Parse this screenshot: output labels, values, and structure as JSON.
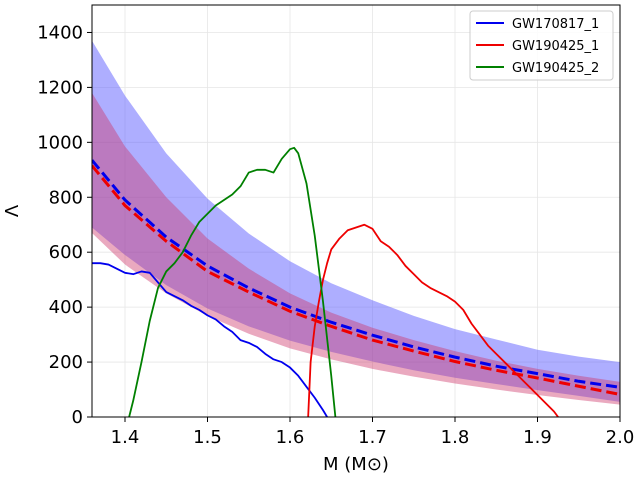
{
  "chart_data": {
    "type": "line",
    "title": "",
    "xlabel": "M (M⊙)",
    "ylabel": "Λ",
    "xlim": [
      1.36,
      2.0
    ],
    "ylim": [
      0,
      1500
    ],
    "xticks": [
      1.4,
      1.5,
      1.6,
      1.7,
      1.8,
      1.9,
      2.0
    ],
    "xtick_labels": [
      "1.4",
      "1.5",
      "1.6",
      "1.7",
      "1.8",
      "1.9",
      "2.0"
    ],
    "yticks": [
      0,
      200,
      400,
      600,
      800,
      1000,
      1200,
      1400
    ],
    "ytick_labels": [
      "0",
      "200",
      "400",
      "600",
      "800",
      "1000",
      "1200",
      "1400"
    ],
    "grid": true,
    "legend_position": "top-right",
    "colors": {
      "blue": "#0000ee",
      "red": "#ee0000",
      "green": "#008000",
      "blue_band": "#5555ff",
      "red_band": "#cc3366"
    },
    "bands": [
      {
        "name": "blue-band",
        "x": [
          1.36,
          1.4,
          1.45,
          1.5,
          1.55,
          1.6,
          1.65,
          1.7,
          1.75,
          1.8,
          1.85,
          1.9,
          1.95,
          2.0
        ],
        "upper": [
          1370,
          1170,
          960,
          795,
          668,
          567,
          487,
          425,
          368,
          320,
          282,
          245,
          220,
          200
        ],
        "lower": [
          690,
          590,
          480,
          395,
          330,
          278,
          237,
          202,
          170,
          143,
          120,
          98,
          77,
          55
        ]
      },
      {
        "name": "red-band",
        "x": [
          1.36,
          1.4,
          1.45,
          1.5,
          1.55,
          1.6,
          1.65,
          1.7,
          1.75,
          1.8,
          1.85,
          1.9,
          1.95,
          2.0
        ],
        "upper": [
          1180,
          985,
          800,
          650,
          540,
          450,
          380,
          325,
          280,
          240,
          205,
          175,
          150,
          128
        ],
        "lower": [
          670,
          555,
          450,
          368,
          303,
          250,
          210,
          175,
          147,
          122,
          100,
          80,
          62,
          45
        ]
      }
    ],
    "dashed_series": [
      {
        "name": "blue-dashed-median",
        "x": [
          1.36,
          1.4,
          1.45,
          1.5,
          1.55,
          1.6,
          1.65,
          1.7,
          1.75,
          1.8,
          1.85,
          1.9,
          1.95,
          2.0
        ],
        "y": [
          935,
          790,
          655,
          550,
          470,
          400,
          345,
          298,
          255,
          218,
          185,
          158,
          130,
          108
        ]
      },
      {
        "name": "red-dashed-median",
        "x": [
          1.36,
          1.4,
          1.45,
          1.5,
          1.55,
          1.6,
          1.65,
          1.7,
          1.75,
          1.8,
          1.85,
          1.9,
          1.95,
          2.0
        ],
        "y": [
          915,
          770,
          640,
          530,
          455,
          385,
          330,
          280,
          240,
          202,
          170,
          142,
          112,
          82
        ]
      }
    ],
    "series": [
      {
        "name": "GW170817_1",
        "x": [
          1.36,
          1.37,
          1.38,
          1.39,
          1.4,
          1.41,
          1.42,
          1.43,
          1.44,
          1.45,
          1.46,
          1.47,
          1.48,
          1.49,
          1.5,
          1.51,
          1.52,
          1.53,
          1.54,
          1.55,
          1.56,
          1.57,
          1.58,
          1.59,
          1.6,
          1.61,
          1.62,
          1.63,
          1.64,
          1.645
        ],
        "y": [
          560,
          560,
          555,
          540,
          525,
          520,
          530,
          525,
          490,
          455,
          440,
          425,
          405,
          390,
          370,
          355,
          330,
          310,
          280,
          270,
          255,
          230,
          210,
          200,
          180,
          150,
          110,
          70,
          25,
          0
        ]
      },
      {
        "name": "GW190425_1",
        "x": [
          1.622,
          1.625,
          1.63,
          1.635,
          1.64,
          1.645,
          1.65,
          1.66,
          1.67,
          1.68,
          1.69,
          1.7,
          1.71,
          1.72,
          1.73,
          1.74,
          1.75,
          1.76,
          1.77,
          1.78,
          1.79,
          1.8,
          1.81,
          1.82,
          1.83,
          1.84,
          1.85,
          1.86,
          1.87,
          1.88,
          1.89,
          1.9,
          1.91,
          1.92,
          1.925
        ],
        "y": [
          0,
          200,
          330,
          420,
          500,
          560,
          610,
          650,
          680,
          690,
          700,
          685,
          640,
          620,
          590,
          550,
          520,
          490,
          470,
          455,
          440,
          420,
          390,
          340,
          300,
          260,
          230,
          200,
          170,
          140,
          110,
          80,
          50,
          20,
          0
        ]
      },
      {
        "name": "GW190425_2",
        "x": [
          1.405,
          1.41,
          1.42,
          1.43,
          1.44,
          1.45,
          1.46,
          1.47,
          1.48,
          1.49,
          1.5,
          1.51,
          1.52,
          1.53,
          1.54,
          1.55,
          1.56,
          1.57,
          1.58,
          1.59,
          1.6,
          1.605,
          1.61,
          1.62,
          1.63,
          1.64,
          1.65,
          1.655
        ],
        "y": [
          0,
          60,
          200,
          350,
          470,
          530,
          560,
          600,
          660,
          710,
          740,
          770,
          790,
          810,
          840,
          890,
          900,
          900,
          890,
          940,
          975,
          980,
          960,
          850,
          660,
          420,
          150,
          0
        ]
      }
    ]
  }
}
